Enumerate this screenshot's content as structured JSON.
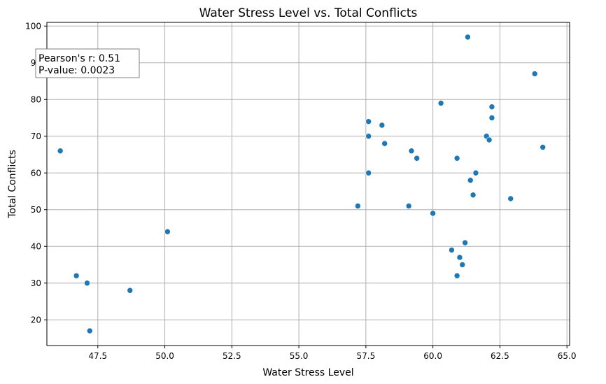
{
  "chart_data": {
    "type": "scatter",
    "title": "Water Stress Level vs. Total Conflicts",
    "xlabel": "Water Stress Level",
    "ylabel": "Total Conflicts",
    "xlim": [
      45.6,
      65.1
    ],
    "ylim": [
      13.0,
      101.0
    ],
    "xticks": [
      "47.5",
      "50.0",
      "52.5",
      "55.0",
      "57.5",
      "60.0",
      "62.5",
      "65.0"
    ],
    "yticks": [
      "20",
      "30",
      "40",
      "50",
      "60",
      "70",
      "80",
      "90",
      "100"
    ],
    "grid": true,
    "marker_color": "#1f77b4",
    "annotation": {
      "lines": [
        "Pearson's r: 0.51",
        "P-value: 0.0023"
      ]
    },
    "points": [
      {
        "x": 46.1,
        "y": 66
      },
      {
        "x": 46.7,
        "y": 32
      },
      {
        "x": 47.1,
        "y": 30
      },
      {
        "x": 47.2,
        "y": 17
      },
      {
        "x": 48.7,
        "y": 28
      },
      {
        "x": 50.1,
        "y": 44
      },
      {
        "x": 57.2,
        "y": 51
      },
      {
        "x": 57.6,
        "y": 74
      },
      {
        "x": 57.6,
        "y": 70
      },
      {
        "x": 57.6,
        "y": 60
      },
      {
        "x": 58.1,
        "y": 73
      },
      {
        "x": 58.2,
        "y": 68
      },
      {
        "x": 59.1,
        "y": 51
      },
      {
        "x": 59.2,
        "y": 66
      },
      {
        "x": 59.4,
        "y": 64
      },
      {
        "x": 60.0,
        "y": 49
      },
      {
        "x": 60.3,
        "y": 79
      },
      {
        "x": 60.7,
        "y": 39
      },
      {
        "x": 60.9,
        "y": 64
      },
      {
        "x": 60.9,
        "y": 32
      },
      {
        "x": 61.0,
        "y": 37
      },
      {
        "x": 61.1,
        "y": 35
      },
      {
        "x": 61.2,
        "y": 41
      },
      {
        "x": 61.3,
        "y": 97
      },
      {
        "x": 61.4,
        "y": 58
      },
      {
        "x": 61.5,
        "y": 54
      },
      {
        "x": 61.6,
        "y": 60
      },
      {
        "x": 62.0,
        "y": 70
      },
      {
        "x": 62.1,
        "y": 69
      },
      {
        "x": 62.2,
        "y": 78
      },
      {
        "x": 62.2,
        "y": 75
      },
      {
        "x": 62.9,
        "y": 53
      },
      {
        "x": 63.8,
        "y": 87
      },
      {
        "x": 64.1,
        "y": 67
      }
    ]
  }
}
